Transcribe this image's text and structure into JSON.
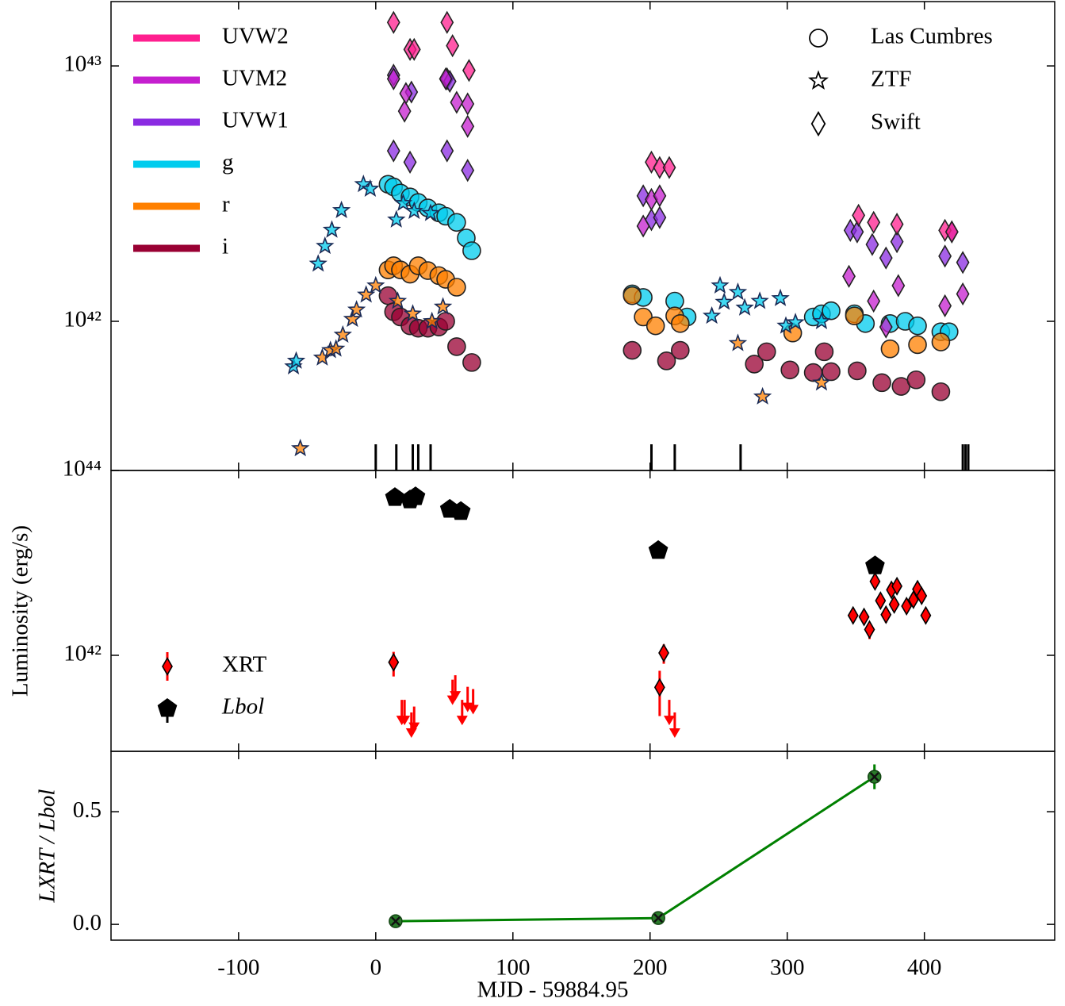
{
  "chart_data": [
    {
      "type": "scatter",
      "yscale": "log",
      "ylim": [
        2.606e+41,
        1.786e+43
      ],
      "yticks": [
        {
          "value": 1e+42,
          "label": "10⁴²"
        },
        {
          "value": 1e+43,
          "label": "10⁴³"
        }
      ],
      "bands": [
        {
          "name": "UVW2",
          "color": "#ff1f8f"
        },
        {
          "name": "UVM2",
          "color": "#c51fcf"
        },
        {
          "name": "UVW1",
          "color": "#8a2be2"
        },
        {
          "name": "g",
          "color": "#00ccee"
        },
        {
          "name": "r",
          "color": "#ff8000"
        },
        {
          "name": "i",
          "color": "#990033"
        }
      ],
      "instruments": [
        {
          "name": "Las Cumbres",
          "marker": "circle"
        },
        {
          "name": "ZTF",
          "marker": "star"
        },
        {
          "name": "Swift",
          "marker": "diamond"
        }
      ],
      "series": [
        {
          "name": "g",
          "instrument": "Las Cumbres",
          "x": [
            9,
            13,
            18,
            25,
            31,
            38,
            46,
            51,
            59,
            66,
            70,
            187,
            195,
            218,
            227,
            319,
            325,
            332,
            349,
            357,
            375,
            386,
            395,
            412,
            418
          ],
          "values": [
            3.44e+42,
            3.36e+42,
            3.18e+42,
            3.07e+42,
            2.92e+42,
            2.78e+42,
            2.66e+42,
            2.58e+42,
            2.44e+42,
            2.12e+42,
            1.89e+42,
            1.28e+42,
            1.24e+42,
            1.2e+42,
            1.04e+42,
            1.04e+42,
            1.07e+42,
            1.1e+42,
            1.07e+42,
            9.8e+41,
            9.8e+41,
            1e+42,
            9.6e+41,
            9.1e+41,
            9.1e+41
          ]
        },
        {
          "name": "r",
          "instrument": "Las Cumbres",
          "x": [
            9,
            13,
            18,
            25,
            31,
            38,
            46,
            51,
            59,
            187,
            195,
            204,
            218,
            222,
            304,
            349,
            375,
            395,
            412
          ],
          "values": [
            1.59e+42,
            1.65e+42,
            1.59e+42,
            1.53e+42,
            1.65e+42,
            1.58e+42,
            1.51e+42,
            1.46e+42,
            1.36e+42,
            1.26e+42,
            1.04e+42,
            9.6e+41,
            1.05e+42,
            9.8e+41,
            9e+41,
            1.05e+42,
            7.8e+41,
            8.1e+41,
            8.3e+41
          ]
        },
        {
          "name": "i",
          "instrument": "Las Cumbres",
          "x": [
            9,
            13,
            18,
            25,
            31,
            38,
            46,
            51,
            59,
            70,
            187,
            212,
            222,
            276,
            285,
            302,
            319,
            327,
            332,
            351,
            369,
            383,
            394,
            412
          ],
          "values": [
            1.26e+42,
            1.09e+42,
            1.04e+42,
            9.6e+41,
            9.4e+41,
            9.4e+41,
            9.5e+41,
            1e+42,
            7.96e+41,
            6.9e+41,
            7.7e+41,
            7e+41,
            7.7e+41,
            6.8e+41,
            7.6e+41,
            6.45e+41,
            6.3e+41,
            7.6e+41,
            6.35e+41,
            6.4e+41,
            5.75e+41,
            5.56e+41,
            5.9e+41,
            5.3e+41
          ]
        },
        {
          "name": "g",
          "instrument": "ZTF",
          "x": [
            -60,
            -58,
            -42,
            -37,
            -32,
            -25,
            -9,
            -4,
            15,
            20,
            28,
            40,
            245,
            251,
            254,
            264,
            269,
            280,
            295,
            299,
            306,
            325
          ],
          "values": [
            6.65e+41,
            7e+41,
            1.68e+42,
            1.97e+42,
            2.28e+42,
            2.72e+42,
            3.44e+42,
            3.3e+42,
            2.5e+42,
            2.9e+42,
            2.7e+42,
            2.65e+42,
            1.05e+42,
            1.38e+42,
            1.19e+42,
            1.3e+42,
            1.13e+42,
            1.2e+42,
            1.23e+42,
            9.6e+41,
            9.9e+41,
            1e+42
          ]
        },
        {
          "name": "r",
          "instrument": "ZTF",
          "x": [
            -55,
            -39,
            -33,
            -29,
            -24,
            -17,
            -14,
            -7,
            0,
            16,
            27,
            41,
            49,
            264,
            282,
            325
          ],
          "values": [
            3.18e+41,
            7.2e+41,
            7.7e+41,
            7.8e+41,
            8.85e+41,
            1.02e+42,
            1.11e+42,
            1.27e+42,
            1.38e+42,
            1.2e+42,
            1.07e+42,
            1e+42,
            1.14e+42,
            8.2e+41,
            5.07e+41,
            5.75e+41
          ]
        },
        {
          "name": "UVW1",
          "instrument": "Swift",
          "x": [
            13,
            26,
            52,
            54,
            13,
            25,
            52,
            67,
            195,
            201,
            207,
            346,
            351,
            362,
            372,
            380,
            415,
            420,
            428
          ],
          "values": [
            9.2e+42,
            7.9e+42,
            8.9e+42,
            8.7e+42,
            4.65e+42,
            4.2e+42,
            4.65e+42,
            3.9e+42,
            3.1e+42,
            2.5e+42,
            2.55e+42,
            2.27e+42,
            2.24e+42,
            2e+42,
            1.77e+42,
            2.05e+42,
            1.8e+42,
            2.24e+42,
            1.7e+42
          ]
        },
        {
          "name": "UVM2",
          "instrument": "Swift",
          "x": [
            13,
            22,
            21,
            51,
            59,
            67,
            67,
            195,
            201,
            207,
            345,
            363,
            372,
            381,
            415,
            428
          ],
          "values": [
            8.9e+42,
            7.8e+42,
            6.65e+42,
            8.9e+42,
            7.2e+42,
            7.1e+42,
            5.8e+42,
            2.36e+42,
            3e+42,
            3.1e+42,
            1.5e+42,
            1.2e+42,
            9.5e+41,
            1.38e+42,
            1.15e+42,
            1.28e+42
          ]
        },
        {
          "name": "UVW2",
          "instrument": "Swift",
          "x": [
            13,
            25,
            28,
            52,
            56,
            68,
            201,
            207,
            214,
            352,
            363,
            380,
            415,
            420
          ],
          "values": [
            1.48e+43,
            1.16e+43,
            1.16e+43,
            1.48e+43,
            1.2e+43,
            9.6e+42,
            4.2e+42,
            4e+42,
            4e+42,
            2.6e+42,
            2.44e+42,
            2.4e+42,
            2.27e+42,
            2.24e+42
          ]
        }
      ],
      "epochs": [
        0,
        15,
        27,
        31,
        40,
        201,
        218,
        266,
        428,
        430,
        432
      ]
    },
    {
      "type": "scatter",
      "yscale": "log",
      "ylim": [
        9.14e+40,
        1e+44
      ],
      "yticks": [
        {
          "value": 1e+42,
          "label": "10⁴²"
        },
        {
          "value": 1e+44,
          "label": "10⁴⁴"
        }
      ],
      "y_label": "Luminosity (erg/s)",
      "series": [
        {
          "name": "XRT",
          "color": "#ff0000",
          "marker": "diamond",
          "x": [
            13,
            207,
            210,
            348,
            356,
            360,
            364,
            368,
            372,
            376,
            378,
            380,
            387,
            392,
            395,
            398,
            401
          ],
          "values": [
            8.4e+41,
            4.5e+41,
            1.06e+42,
            2.7e+42,
            2.6e+42,
            1.9e+42,
            6.3e+42,
            3.9e+42,
            2.75e+42,
            5.1e+42,
            3.55e+42,
            5.6e+42,
            3.4e+42,
            4e+42,
            5.2e+42,
            4.4e+42,
            2.7e+42
          ],
          "errors": [
            2.5e+41,
            2.3e+41,
            2.5e+41,
            4e+41,
            4e+41,
            4e+41,
            1e+42,
            6e+41,
            5e+41,
            7e+41,
            5e+41,
            7e+41,
            5e+41,
            6e+41,
            7e+41,
            6e+41,
            4e+41
          ],
          "upper_limits": {
            "x": [
              19,
              21,
              26,
              28,
              56,
              58,
              63,
              67,
              71,
              214,
              218
            ],
            "values": [
              2.6e+41,
              2.6e+41,
              1.9e+41,
              2.2e+41,
              4.3e+41,
              4.8e+41,
              2.6e+41,
              3.6e+41,
              3.4e+41,
              2.6e+41,
              1.9e+41
            ]
          }
        },
        {
          "name": "Lbol",
          "color": "#000000",
          "marker": "pentagon",
          "x": [
            14,
            25,
            29,
            54,
            62,
            206,
            364
          ],
          "values": [
            5.1e+43,
            4.8e+43,
            5.2e+43,
            3.8e+43,
            3.6e+43,
            1.36e+43,
            9.3e+42
          ]
        }
      ]
    },
    {
      "type": "line",
      "ylim": [
        -0.07,
        0.768
      ],
      "yticks": [
        {
          "value": 0,
          "label": "0.0"
        },
        {
          "value": 0.5,
          "label": "0.5"
        }
      ],
      "xlim": [
        -193,
        495
      ],
      "xticks": [
        -100,
        0,
        100,
        200,
        300,
        400
      ],
      "x_label": "MJD - 59884.95",
      "y_label": "LXRT / Lbol",
      "series": [
        {
          "color": "#008000",
          "x": [
            14.5,
            206,
            363.6
          ],
          "values": [
            0.014,
            0.028,
            0.655
          ],
          "errors": [
            0.012,
            0.01,
            0.055
          ]
        }
      ]
    }
  ]
}
